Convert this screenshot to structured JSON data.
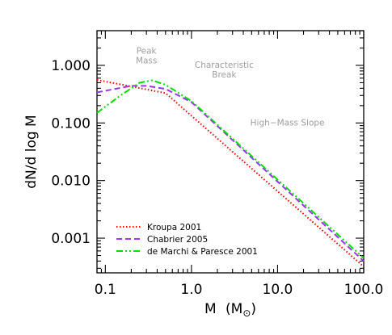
{
  "chart_data": {
    "type": "line",
    "xlabel_main": "M",
    "xlabel_unit_open": "(M",
    "xlabel_unit_sub": "⊙",
    "xlabel_unit_close": ")",
    "ylabel": "dN/d log M",
    "x_scale": "log",
    "y_scale": "log",
    "xlim": [
      0.08,
      100
    ],
    "ylim": [
      0.00025,
      4
    ],
    "x_ticks": [
      0.1,
      1,
      10,
      100
    ],
    "x_tick_labels": [
      "0.1",
      "1.0",
      "10.0",
      "100.0"
    ],
    "y_ticks": [
      0.001,
      0.01,
      0.1,
      1
    ],
    "y_tick_labels": [
      "0.001",
      "0.010",
      "0.100",
      "1.000"
    ],
    "grid": false,
    "legend_position": "bottom-left",
    "series": [
      {
        "name": "Kroupa 2001",
        "color": "#ff0000",
        "style": "dotted",
        "points": [
          [
            0.08,
            0.56
          ],
          [
            0.5,
            0.33
          ],
          [
            100,
            0.00032
          ]
        ]
      },
      {
        "name": "Chabrier 2005",
        "color": "#9933ff",
        "style": "dashed",
        "points": [
          [
            0.08,
            0.34
          ],
          [
            0.2,
            0.44
          ],
          [
            0.3,
            0.44
          ],
          [
            0.5,
            0.39
          ],
          [
            1,
            0.23
          ],
          [
            100,
            0.0004
          ]
        ]
      },
      {
        "name": "de Marchi & Paresce 2001",
        "color": "#00dd00",
        "style": "dash-dot-dot",
        "points": [
          [
            0.08,
            0.15
          ],
          [
            0.15,
            0.3
          ],
          [
            0.25,
            0.5
          ],
          [
            0.35,
            0.55
          ],
          [
            0.5,
            0.46
          ],
          [
            1,
            0.24
          ],
          [
            100,
            0.00045
          ]
        ]
      }
    ],
    "annotations": [
      {
        "lines": [
          "Peak",
          "Mass"
        ],
        "x": 0.3,
        "y": 1.6
      },
      {
        "lines": [
          "Characteristic",
          "Break"
        ],
        "x": 2.4,
        "y": 0.9
      },
      {
        "lines": [
          "High−Mass Slope"
        ],
        "x": 13,
        "y": 0.09
      }
    ]
  }
}
